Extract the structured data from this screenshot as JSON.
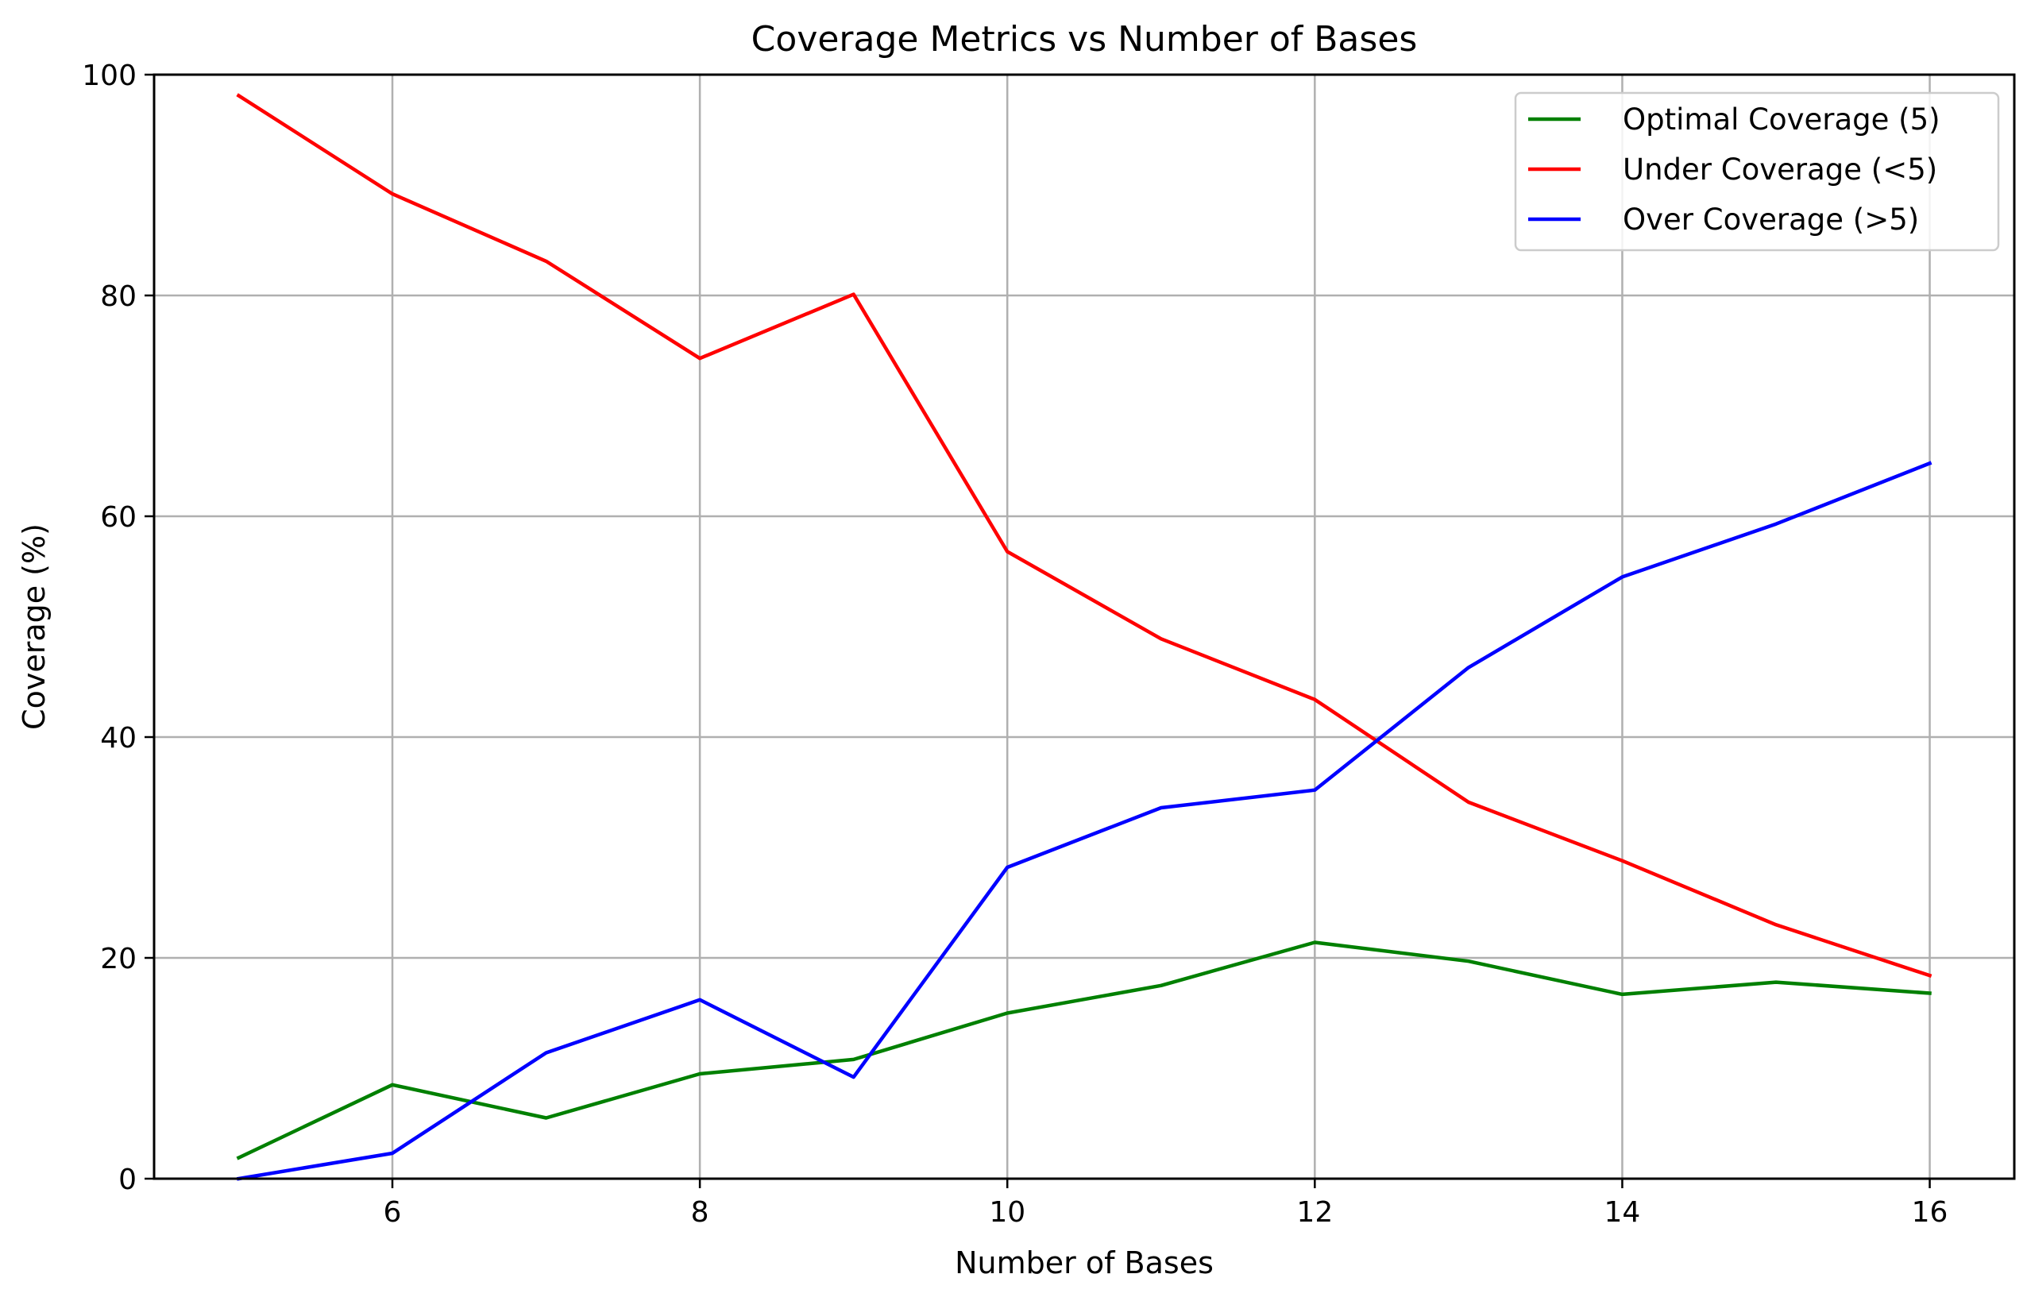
{
  "chart_data": {
    "type": "line",
    "title": "Coverage Metrics vs Number of Bases",
    "xlabel": "Number of Bases",
    "ylabel": "Coverage (%)",
    "xlim": [
      4.45,
      16.55
    ],
    "ylim": [
      0,
      100
    ],
    "x": [
      5,
      6,
      7,
      8,
      9,
      10,
      11,
      12,
      13,
      14,
      15,
      16
    ],
    "xticks": [
      6,
      8,
      10,
      12,
      14,
      16
    ],
    "yticks": [
      0,
      20,
      40,
      60,
      80,
      100
    ],
    "grid": true,
    "legend_position": "top-right",
    "series": [
      {
        "name": "Optimal Coverage (5)",
        "color": "#008000",
        "values": [
          1.9,
          8.5,
          5.5,
          9.5,
          10.8,
          15.0,
          17.5,
          21.4,
          19.7,
          16.7,
          17.8,
          16.8
        ]
      },
      {
        "name": "Under Coverage (<5)",
        "color": "#ff0000",
        "values": [
          98.1,
          89.2,
          83.1,
          74.3,
          80.1,
          56.8,
          48.9,
          43.4,
          34.1,
          28.8,
          23.0,
          18.4
        ]
      },
      {
        "name": "Over Coverage (>5)",
        "color": "#0000ff",
        "values": [
          0.0,
          2.3,
          11.4,
          16.2,
          9.2,
          28.2,
          33.6,
          35.2,
          46.3,
          54.5,
          59.3,
          64.8
        ]
      }
    ]
  }
}
